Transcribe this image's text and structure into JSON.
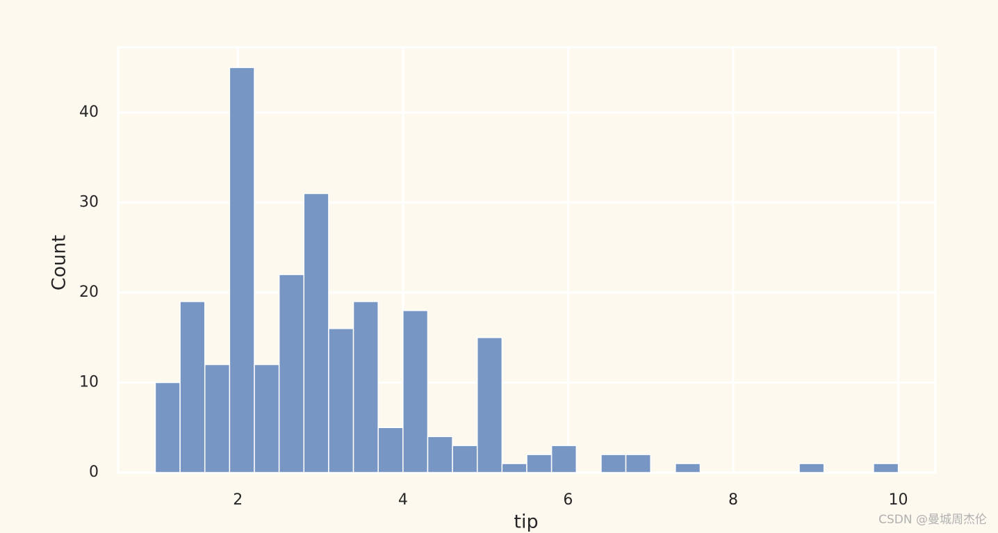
{
  "chart_data": {
    "type": "histogram",
    "x_label": "tip",
    "y_label": "Count",
    "bins": [
      1.0,
      1.3,
      1.6,
      1.9,
      2.2,
      2.5,
      2.8,
      3.1,
      3.4,
      3.7,
      4.0,
      4.3,
      4.6,
      4.9,
      5.2,
      5.5,
      5.8,
      6.1,
      6.4,
      6.7,
      7.0,
      7.3,
      7.6,
      7.9,
      8.2,
      8.5,
      8.8,
      9.1,
      9.4,
      9.7,
      10.0
    ],
    "counts": [
      10,
      19,
      12,
      45,
      12,
      22,
      31,
      16,
      19,
      5,
      18,
      4,
      3,
      15,
      1,
      2,
      3,
      0,
      2,
      2,
      0,
      1,
      0,
      0,
      0,
      0,
      1,
      0,
      0,
      1
    ],
    "color": "#7896c4",
    "xlim": [
      0.55,
      10.45
    ],
    "xticks": [
      2,
      4,
      6,
      8,
      10
    ],
    "ylim": [
      0,
      47.25
    ],
    "yticks": [
      0,
      10,
      20,
      30,
      40
    ],
    "grid": true,
    "watermark": "CSDN @曼城周杰伦"
  }
}
